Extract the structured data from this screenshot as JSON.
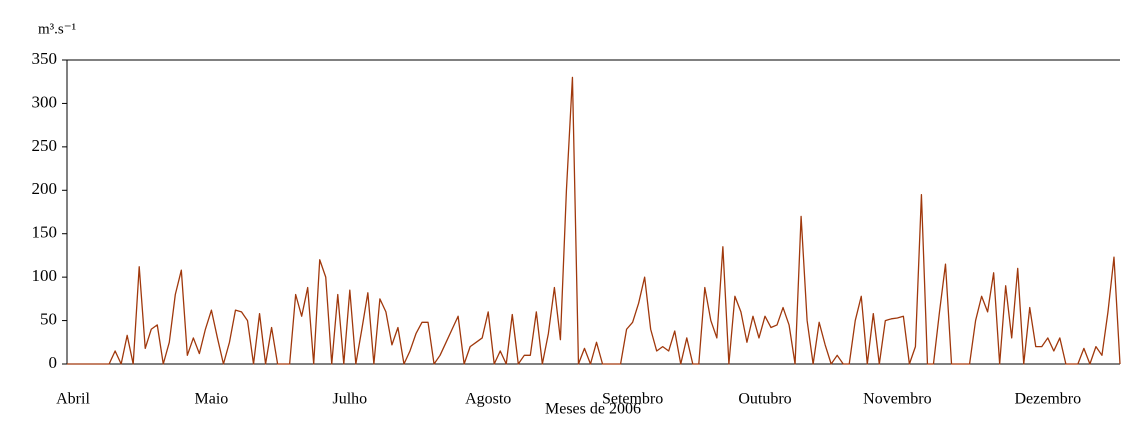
{
  "chart_data": {
    "type": "line",
    "y_label": "m³.s⁻¹",
    "x_label": "Meses de 2006",
    "categories": [
      null,
      "Abril",
      null,
      null,
      null,
      null,
      null,
      null,
      null,
      null,
      null,
      null,
      null,
      null,
      null,
      null,
      null,
      null,
      null,
      null,
      null,
      null,
      null,
      null,
      "Maio",
      null,
      null,
      null,
      null,
      null,
      null,
      null,
      null,
      null,
      null,
      null,
      null,
      null,
      null,
      null,
      null,
      null,
      null,
      null,
      null,
      null,
      null,
      "Julho",
      null,
      null,
      null,
      null,
      null,
      null,
      null,
      null,
      null,
      null,
      null,
      null,
      null,
      null,
      null,
      null,
      null,
      null,
      null,
      null,
      null,
      null,
      "Agosto",
      null,
      null,
      null,
      null,
      null,
      null,
      null,
      null,
      null,
      null,
      null,
      null,
      null,
      null,
      null,
      null,
      null,
      null,
      null,
      null,
      null,
      null,
      null,
      "Setembro",
      null,
      null,
      null,
      null,
      null,
      null,
      null,
      null,
      null,
      null,
      null,
      null,
      null,
      null,
      null,
      null,
      null,
      null,
      null,
      null,
      null,
      "Outubro",
      null,
      null,
      null,
      null,
      null,
      null,
      null,
      null,
      null,
      null,
      null,
      null,
      null,
      null,
      null,
      null,
      null,
      null,
      null,
      null,
      null,
      "Novembro",
      null,
      null,
      null,
      null,
      null,
      null,
      null,
      null,
      null,
      null,
      null,
      null,
      null,
      null,
      null,
      null,
      null,
      null,
      null,
      null,
      null,
      null,
      null,
      null,
      "Dezembro",
      null,
      null,
      null,
      null,
      null,
      null,
      null,
      null,
      null,
      null,
      null,
      null
    ],
    "values": [
      0,
      0,
      0,
      0,
      0,
      0,
      0,
      0,
      15,
      0,
      33,
      0,
      112,
      18,
      40,
      45,
      0,
      25,
      80,
      108,
      10,
      30,
      12,
      40,
      62,
      30,
      0,
      25,
      62,
      60,
      50,
      0,
      58,
      0,
      42,
      0,
      0,
      0,
      80,
      55,
      88,
      0,
      120,
      100,
      0,
      80,
      0,
      85,
      0,
      40,
      82,
      0,
      75,
      60,
      22,
      42,
      0,
      15,
      35,
      48,
      48,
      0,
      10,
      25,
      40,
      55,
      0,
      20,
      25,
      30,
      60,
      0,
      15,
      0,
      57,
      0,
      10,
      10,
      60,
      0,
      35,
      88,
      28,
      200,
      330,
      0,
      18,
      0,
      25,
      0,
      0,
      0,
      0,
      40,
      48,
      70,
      100,
      40,
      15,
      20,
      15,
      38,
      0,
      30,
      0,
      0,
      88,
      50,
      30,
      135,
      0,
      78,
      60,
      25,
      55,
      30,
      55,
      42,
      45,
      65,
      45,
      0,
      170,
      50,
      0,
      48,
      22,
      0,
      10,
      0,
      0,
      50,
      78,
      0,
      58,
      0,
      50,
      52,
      53,
      55,
      0,
      20,
      195,
      0,
      0,
      60,
      115,
      0,
      0,
      0,
      0,
      50,
      78,
      60,
      105,
      0,
      90,
      30,
      110,
      0,
      65,
      20,
      20,
      30,
      15,
      30,
      0,
      0,
      0,
      18,
      0,
      20,
      10,
      60,
      123,
      0
    ],
    "color": "#a0380c",
    "ylim": [
      0,
      350
    ],
    "yticks": [
      0,
      50,
      100,
      150,
      200,
      250,
      300,
      350
    ]
  }
}
